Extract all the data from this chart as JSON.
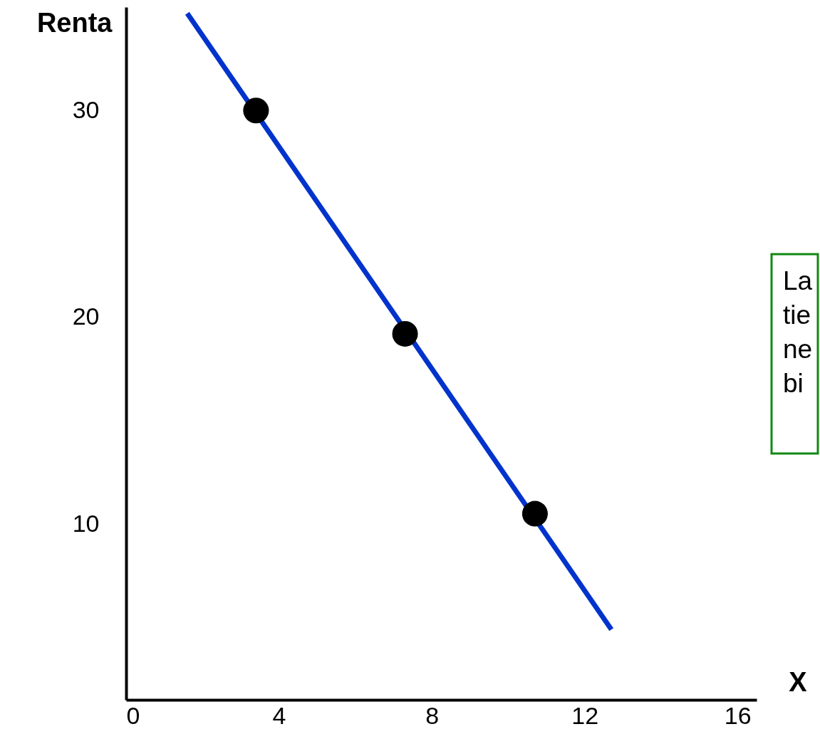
{
  "chart_data": {
    "type": "line",
    "xlabel": "X",
    "ylabel": "Renta",
    "series": [
      {
        "color": "#0033cc",
        "x": [
          1.6,
          12.7
        ],
        "values": [
          34.7,
          4.9
        ]
      },
      {
        "type": "scatter",
        "color": "#000000",
        "marker": "circle",
        "x": [
          3.4,
          7.3,
          10.7
        ],
        "values": [
          30,
          19.2,
          10.5
        ]
      }
    ],
    "xlim": [
      0,
      16.5
    ],
    "xticks": [
      0,
      4,
      8,
      12,
      16
    ],
    "ylim": [
      1.5,
      35
    ],
    "yticks": [
      10,
      20,
      30
    ],
    "grid": false,
    "annotations": [
      "La\ntie\nne\nbi"
    ]
  }
}
